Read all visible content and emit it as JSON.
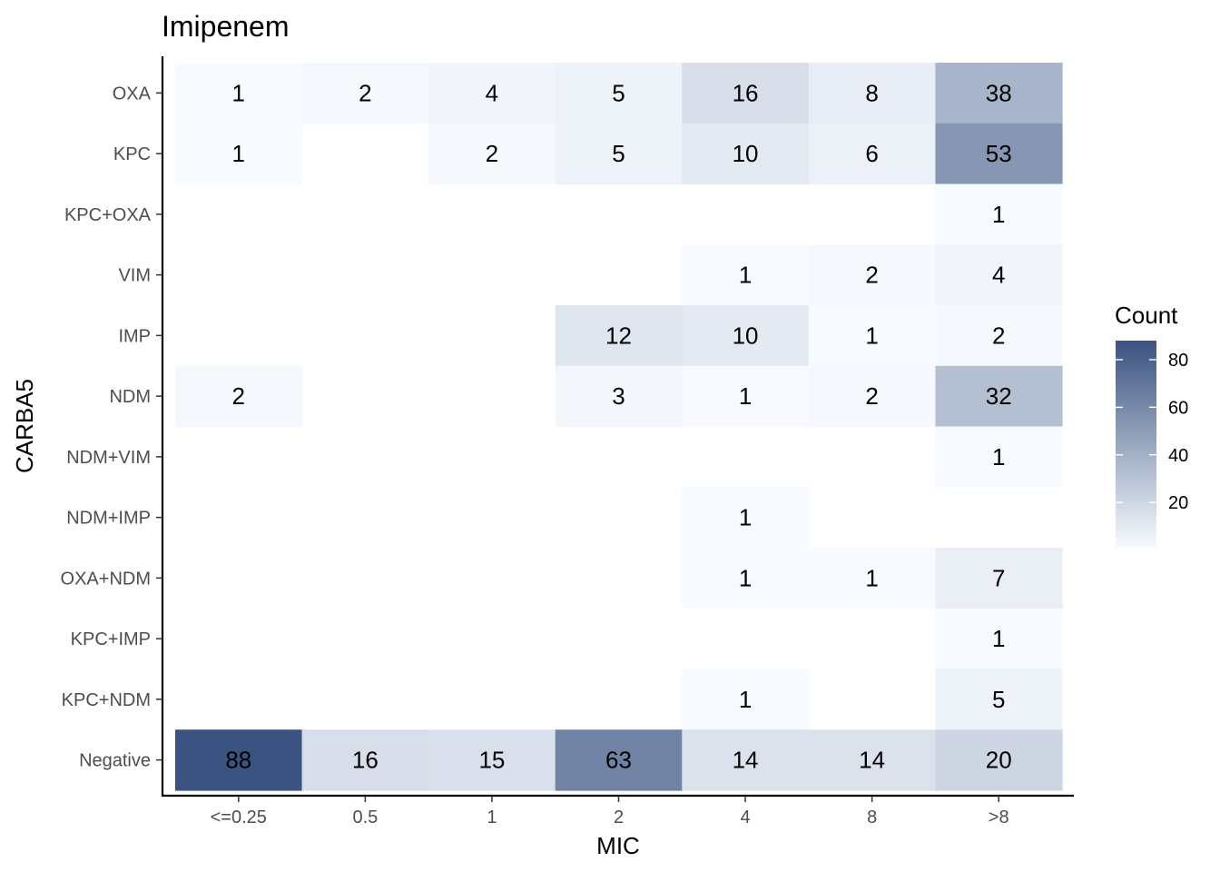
{
  "chart_data": {
    "type": "heatmap",
    "title": "Imipenem",
    "xlabel": "MIC",
    "ylabel": "CARBA5",
    "x_categories": [
      "<=0.25",
      "0.5",
      "1",
      "2",
      "4",
      "8",
      ">8"
    ],
    "y_categories": [
      "OXA",
      "KPC",
      "KPC+OXA",
      "VIM",
      "IMP",
      "NDM",
      "NDM+VIM",
      "NDM+IMP",
      "OXA+NDM",
      "KPC+IMP",
      "KPC+NDM",
      "Negative"
    ],
    "values": [
      [
        1,
        2,
        4,
        5,
        16,
        8,
        38
      ],
      [
        1,
        null,
        2,
        5,
        10,
        6,
        53
      ],
      [
        null,
        null,
        null,
        null,
        null,
        null,
        1
      ],
      [
        null,
        null,
        null,
        null,
        1,
        2,
        4
      ],
      [
        null,
        null,
        null,
        12,
        10,
        1,
        2
      ],
      [
        2,
        null,
        null,
        3,
        1,
        2,
        32
      ],
      [
        null,
        null,
        null,
        null,
        null,
        null,
        1
      ],
      [
        null,
        null,
        null,
        null,
        1,
        null,
        null
      ],
      [
        null,
        null,
        null,
        null,
        1,
        1,
        7
      ],
      [
        null,
        null,
        null,
        null,
        null,
        null,
        1
      ],
      [
        null,
        null,
        null,
        null,
        1,
        null,
        5
      ],
      [
        88,
        16,
        15,
        63,
        14,
        14,
        20
      ]
    ],
    "legend": {
      "title": "Count",
      "ticks": [
        20,
        40,
        60,
        80
      ],
      "range": [
        1,
        88
      ],
      "low_color": "#f7fbff",
      "high_color": "#3b5380",
      "placement": "right"
    },
    "grid": false
  }
}
